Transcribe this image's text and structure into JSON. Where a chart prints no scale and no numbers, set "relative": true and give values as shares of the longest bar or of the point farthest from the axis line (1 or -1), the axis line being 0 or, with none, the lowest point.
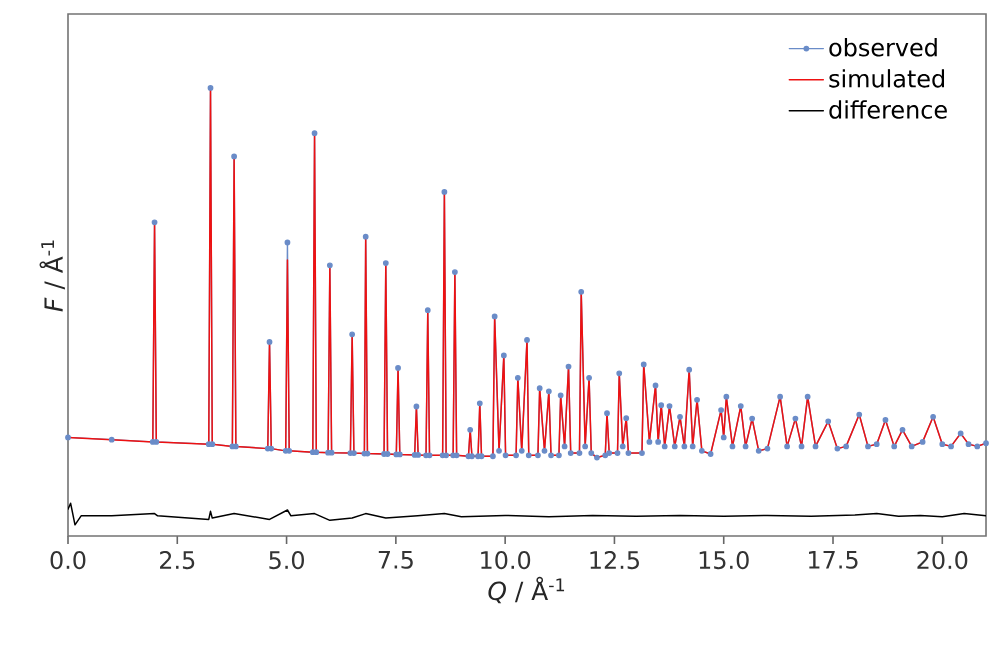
{
  "chart_data": {
    "type": "line",
    "relative": true,
    "xlabel": "*Q* / Å$^{-1}$",
    "ylabel": "*F* / Å$^{-1}$",
    "xlim": [
      0,
      21
    ],
    "xticks": [
      {
        "value": 0,
        "label": "0.0"
      },
      {
        "value": 2.5,
        "label": "2.5"
      },
      {
        "value": 5,
        "label": "5.0"
      },
      {
        "value": 7.5,
        "label": "7.5"
      },
      {
        "value": 10,
        "label": "10.0"
      },
      {
        "value": 12.5,
        "label": "12.5"
      },
      {
        "value": 15,
        "label": "15.0"
      },
      {
        "value": 17.5,
        "label": "17.5"
      },
      {
        "value": 20,
        "label": "20.0"
      }
    ],
    "tick_labels": "x",
    "grid": false,
    "legend": "top right",
    "line_style": "solid",
    "x": [
      0,
      1.0,
      1.94,
      1.98,
      2.02,
      3.22,
      3.26,
      3.3,
      3.76,
      3.8,
      3.84,
      4.57,
      4.61,
      4.65,
      4.98,
      5.02,
      5.06,
      5.6,
      5.64,
      5.68,
      5.95,
      5.99,
      6.03,
      6.46,
      6.5,
      6.54,
      6.78,
      6.81,
      6.85,
      7.23,
      7.27,
      7.31,
      7.51,
      7.55,
      7.59,
      7.93,
      7.97,
      8.01,
      8.19,
      8.23,
      8.27,
      8.57,
      8.61,
      8.65,
      8.81,
      8.85,
      8.89,
      9.16,
      9.2,
      9.24,
      9.38,
      9.42,
      9.46,
      9.72,
      9.76,
      9.86,
      9.97,
      10.01,
      10.25,
      10.29,
      10.38,
      10.5,
      10.54,
      10.75,
      10.79,
      10.9,
      11.0,
      11.05,
      11.23,
      11.27,
      11.36,
      11.45,
      11.5,
      11.7,
      11.74,
      11.83,
      11.92,
      11.97,
      12.1,
      12.29,
      12.33,
      12.38,
      12.57,
      12.61,
      12.69,
      12.77,
      12.82,
      13.13,
      13.17,
      13.3,
      13.44,
      13.5,
      13.57,
      13.65,
      13.76,
      13.88,
      14.0,
      14.1,
      14.21,
      14.29,
      14.39,
      14.5,
      14.7,
      14.94,
      15.0,
      15.06,
      15.2,
      15.39,
      15.5,
      15.65,
      15.8,
      16.0,
      16.29,
      16.45,
      16.64,
      16.78,
      16.92,
      17.1,
      17.39,
      17.6,
      17.8,
      18.1,
      18.3,
      18.5,
      18.7,
      18.9,
      19.09,
      19.3,
      19.55,
      19.79,
      20.0,
      20.2,
      20.42,
      20.6,
      20.8,
      21.0
    ],
    "series": [
      {
        "name": "observed",
        "color": "#6a8cc8",
        "marker": "circle",
        "values": [
          0.22,
          0.215,
          0.21,
          0.7,
          0.21,
          0.205,
          1.0,
          0.205,
          0.2,
          0.847,
          0.2,
          0.195,
          0.433,
          0.195,
          0.19,
          0.655,
          0.19,
          0.187,
          0.899,
          0.187,
          0.186,
          0.604,
          0.186,
          0.185,
          0.45,
          0.185,
          0.184,
          0.668,
          0.184,
          0.183,
          0.609,
          0.183,
          0.182,
          0.375,
          0.182,
          0.181,
          0.289,
          0.181,
          0.18,
          0.504,
          0.18,
          0.18,
          0.768,
          0.18,
          0.18,
          0.589,
          0.18,
          0.178,
          0.237,
          0.178,
          0.178,
          0.296,
          0.178,
          0.178,
          0.49,
          0.19,
          0.403,
          0.18,
          0.18,
          0.353,
          0.19,
          0.4375,
          0.18,
          0.18,
          0.33,
          0.19,
          0.323,
          0.18,
          0.18,
          0.314,
          0.2,
          0.378,
          0.185,
          0.185,
          0.545,
          0.2,
          0.353,
          0.185,
          0.175,
          0.18,
          0.274,
          0.185,
          0.185,
          0.363,
          0.2,
          0.263,
          0.185,
          0.185,
          0.383,
          0.21,
          0.336,
          0.21,
          0.292,
          0.2,
          0.29,
          0.2,
          0.266,
          0.2,
          0.371,
          0.2,
          0.304,
          0.19,
          0.183,
          0.281,
          0.22,
          0.311,
          0.2,
          0.29,
          0.2,
          0.262,
          0.19,
          0.195,
          0.311,
          0.2,
          0.262,
          0.2,
          0.311,
          0.2,
          0.256,
          0.195,
          0.2,
          0.271,
          0.2,
          0.205,
          0.259,
          0.2,
          0.237,
          0.2,
          0.21,
          0.266,
          0.205,
          0.2,
          0.229,
          0.205,
          0.2,
          0.207
        ]
      },
      {
        "name": "simulated",
        "color": "#ee1111",
        "marker": "none",
        "values": [
          0.22,
          0.215,
          0.21,
          0.7,
          0.21,
          0.205,
          1.0,
          0.205,
          0.2,
          0.847,
          0.2,
          0.195,
          0.433,
          0.195,
          0.19,
          0.616,
          0.19,
          0.187,
          0.899,
          0.187,
          0.186,
          0.604,
          0.186,
          0.185,
          0.45,
          0.185,
          0.184,
          0.668,
          0.184,
          0.183,
          0.609,
          0.183,
          0.182,
          0.375,
          0.182,
          0.181,
          0.289,
          0.181,
          0.18,
          0.504,
          0.18,
          0.18,
          0.768,
          0.18,
          0.18,
          0.589,
          0.18,
          0.178,
          0.237,
          0.178,
          0.178,
          0.296,
          0.178,
          0.178,
          0.49,
          0.19,
          0.403,
          0.18,
          0.18,
          0.353,
          0.19,
          0.4375,
          0.18,
          0.18,
          0.33,
          0.19,
          0.323,
          0.18,
          0.18,
          0.314,
          0.2,
          0.378,
          0.185,
          0.185,
          0.545,
          0.2,
          0.353,
          0.185,
          0.175,
          0.18,
          0.274,
          0.185,
          0.185,
          0.363,
          0.2,
          0.263,
          0.185,
          0.185,
          0.383,
          0.21,
          0.336,
          0.21,
          0.292,
          0.2,
          0.29,
          0.2,
          0.266,
          0.2,
          0.371,
          0.2,
          0.304,
          0.19,
          0.183,
          0.281,
          0.22,
          0.311,
          0.2,
          0.29,
          0.2,
          0.262,
          0.19,
          0.195,
          0.311,
          0.2,
          0.262,
          0.2,
          0.311,
          0.2,
          0.256,
          0.195,
          0.2,
          0.271,
          0.2,
          0.205,
          0.259,
          0.2,
          0.237,
          0.2,
          0.21,
          0.266,
          0.205,
          0.2,
          0.229,
          0.205,
          0.2,
          0.207
        ]
      },
      {
        "name": "difference",
        "color": "#000000",
        "marker": "none",
        "x": [
          0,
          0.06,
          0.16,
          0.3,
          1.0,
          1.98,
          2.05,
          3.22,
          3.26,
          3.3,
          3.8,
          4.61,
          5.02,
          5.1,
          5.64,
          5.99,
          6.5,
          6.81,
          7.27,
          8.0,
          8.61,
          9.0,
          10.0,
          11.0,
          12.0,
          13.0,
          14.0,
          15.0,
          16.0,
          17.0,
          18.0,
          18.5,
          19.0,
          19.5,
          20.0,
          20.5,
          21.0
        ],
        "values": [
          0.06,
          0.073,
          0.025,
          0.045,
          0.045,
          0.05,
          0.045,
          0.037,
          0.055,
          0.04,
          0.05,
          0.037,
          0.058,
          0.045,
          0.05,
          0.035,
          0.04,
          0.05,
          0.04,
          0.045,
          0.05,
          0.043,
          0.046,
          0.043,
          0.046,
          0.044,
          0.046,
          0.044,
          0.046,
          0.044,
          0.047,
          0.05,
          0.044,
          0.046,
          0.043,
          0.05,
          0.045
        ]
      }
    ]
  }
}
